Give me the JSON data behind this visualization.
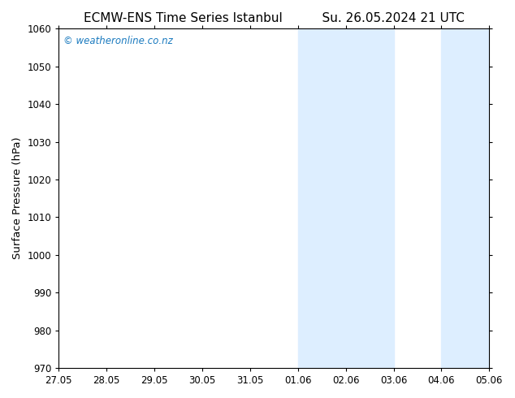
{
  "title_left": "ECMW-ENS Time Series Istanbul",
  "title_right": "Su. 26.05.2024 21 UTC",
  "ylabel": "Surface Pressure (hPa)",
  "ylim": [
    970,
    1060
  ],
  "yticks": [
    970,
    980,
    990,
    1000,
    1010,
    1020,
    1030,
    1040,
    1050,
    1060
  ],
  "xtick_labels": [
    "27.05",
    "28.05",
    "29.05",
    "30.05",
    "31.05",
    "01.06",
    "02.06",
    "03.06",
    "04.06",
    "05.06"
  ],
  "xtick_positions": [
    0,
    1,
    2,
    3,
    4,
    5,
    6,
    7,
    8,
    9
  ],
  "plot_bg_color": "#ffffff",
  "outer_bg_color": "#ffffff",
  "band_color": "#ddeeff",
  "band1_start": 5,
  "band1_end": 5.33,
  "band2_start": 5.67,
  "band2_end": 7,
  "band3_start": 8,
  "band3_end": 8.33,
  "band4_start": 8.67,
  "band4_end": 9,
  "watermark_text": "© weatheronline.co.nz",
  "watermark_color": "#1a7abf",
  "title_fontsize": 11,
  "tick_fontsize": 8.5,
  "ylabel_fontsize": 9.5
}
